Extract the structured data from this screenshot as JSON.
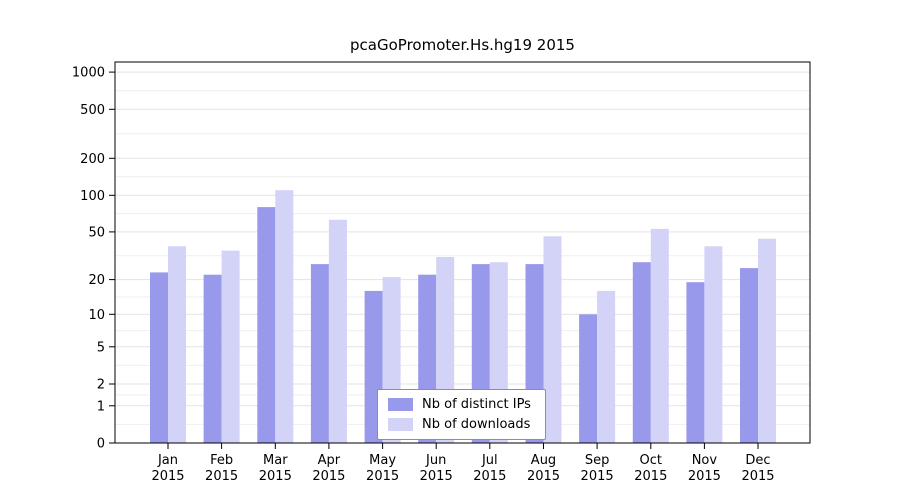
{
  "chart_data": {
    "type": "bar",
    "title": "pcaGoPromoter.Hs.hg19 2015",
    "categories": [
      "Jan",
      "Feb",
      "Mar",
      "Apr",
      "May",
      "Jun",
      "Jul",
      "Aug",
      "Sep",
      "Oct",
      "Nov",
      "Dec"
    ],
    "category_year": "2015",
    "series": [
      {
        "name": "Nb of distinct IPs",
        "color": "#9999EB",
        "values": [
          23,
          22,
          80,
          27,
          16,
          22,
          27,
          27,
          10,
          28,
          19,
          25
        ]
      },
      {
        "name": "Nb of downloads",
        "color": "#D3D3F7",
        "values": [
          38,
          35,
          110,
          63,
          21,
          31,
          28,
          46,
          16,
          53,
          38,
          44
        ]
      }
    ],
    "y_ticks": [
      0,
      1,
      2,
      5,
      10,
      20,
      50,
      100,
      200,
      500,
      1000
    ],
    "y_transform": "log10(v+1)",
    "ylim": [
      0,
      1500
    ],
    "grid": true,
    "legend_position": "lower center",
    "axis_color": "#000000",
    "grid_major_color": "#e3e3e3",
    "grid_minor_color": "#efefef",
    "background": "#ffffff"
  }
}
